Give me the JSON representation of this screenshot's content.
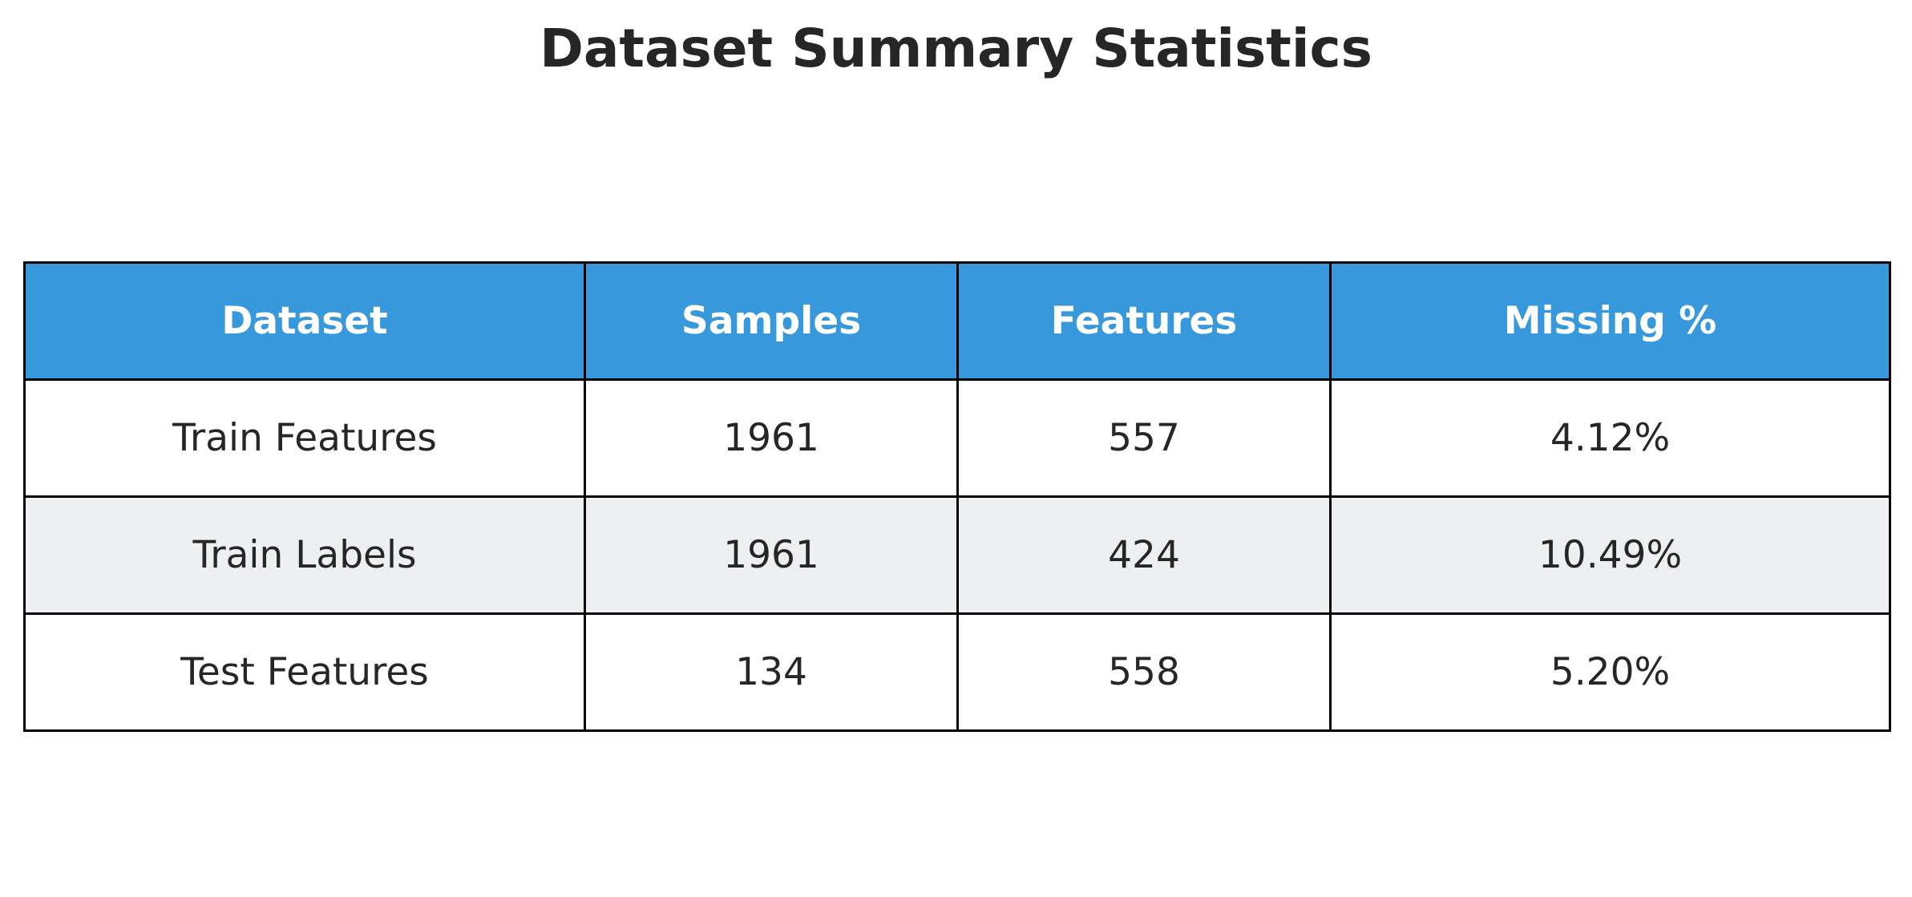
{
  "chart_data": {
    "type": "table",
    "title": "Dataset Summary Statistics",
    "columns": [
      "Dataset",
      "Samples",
      "Features",
      "Missing %"
    ],
    "rows": [
      [
        "Train Features",
        "1961",
        "557",
        "4.12%"
      ],
      [
        "Train Labels",
        "1961",
        "424",
        "10.49%"
      ],
      [
        "Test Features",
        "134",
        "558",
        "5.20%"
      ]
    ],
    "header_color": "#3898DC",
    "row_colors": [
      "#FFFFFF",
      "#ECF0F1",
      "#FFFFFF"
    ],
    "border_color": "#000000",
    "text_color": "#262626",
    "header_text_color": "#FFFFFF"
  }
}
